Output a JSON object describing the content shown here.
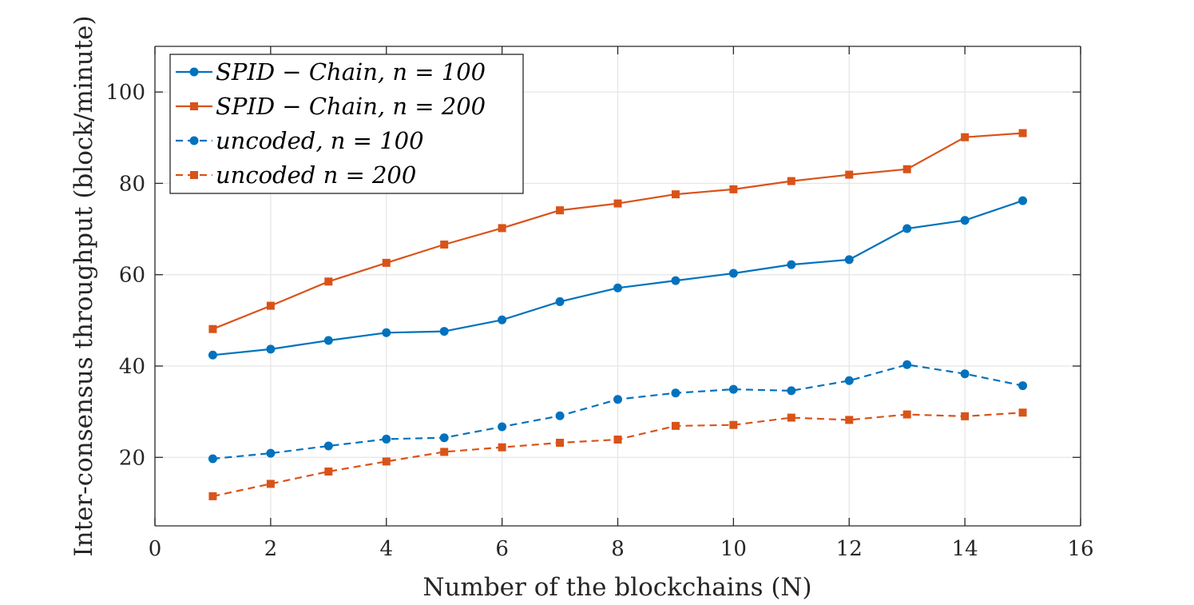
{
  "chart_data": {
    "type": "line",
    "title": "",
    "xlabel": "Number of the blockchains (N)",
    "ylabel": "Inter-consensus throughput (block/minute)",
    "xlim": [
      0,
      16
    ],
    "ylim": [
      5,
      110
    ],
    "xticks": [
      0,
      2,
      4,
      6,
      8,
      10,
      12,
      14,
      16
    ],
    "yticks": [
      20,
      40,
      60,
      80,
      100
    ],
    "xtick_labels": [
      "0",
      "2",
      "4",
      "6",
      "8",
      "10",
      "12",
      "14",
      "16"
    ],
    "ytick_labels": [
      "20",
      "40",
      "60",
      "80",
      "100"
    ],
    "grid": true,
    "legend_position": "top-left",
    "x": [
      1,
      2,
      3,
      4,
      5,
      6,
      7,
      8,
      9,
      10,
      11,
      12,
      13,
      14,
      15
    ],
    "series": [
      {
        "name": "SPID − Chain, n = 100",
        "color": "#0072BD",
        "line_style": "solid",
        "marker": "circle",
        "values": [
          42.4,
          43.7,
          45.6,
          47.3,
          47.6,
          50.1,
          54.1,
          57.1,
          58.7,
          60.3,
          62.2,
          63.3,
          70.1,
          71.9,
          76.2
        ]
      },
      {
        "name": "SPID − Chain, n = 200",
        "color": "#D95319",
        "line_style": "solid",
        "marker": "square",
        "values": [
          48.1,
          53.2,
          58.5,
          62.6,
          66.6,
          70.2,
          74.1,
          75.6,
          77.6,
          78.7,
          80.5,
          81.9,
          83.1,
          90.1,
          91.0
        ]
      },
      {
        "name": "uncoded, n = 100",
        "color": "#0072BD",
        "line_style": "dashed",
        "marker": "circle",
        "values": [
          19.7,
          20.9,
          22.5,
          24.0,
          24.3,
          26.7,
          29.1,
          32.7,
          34.1,
          34.9,
          34.6,
          36.8,
          40.3,
          38.3,
          35.7
        ]
      },
      {
        "name": "uncoded n = 200",
        "color": "#D95319",
        "line_style": "dashed",
        "marker": "square",
        "values": [
          11.5,
          14.2,
          16.9,
          19.1,
          21.2,
          22.2,
          23.2,
          23.9,
          26.9,
          27.1,
          28.7,
          28.2,
          29.4,
          29.0,
          29.8
        ]
      }
    ]
  }
}
